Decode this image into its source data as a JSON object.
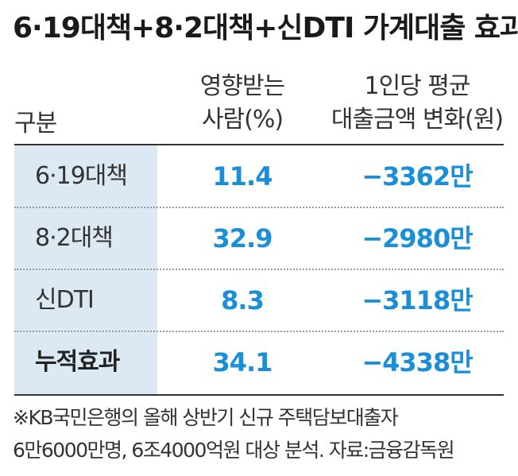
{
  "chart_data": {
    "type": "table",
    "title": "6·19대책+8·2대책+신DTI 가계대출 효과",
    "columns": {
      "category": "구분",
      "affected_line1": "영향받는",
      "affected_line2": "사람(%)",
      "loan_line1": "1인당 평균",
      "loan_line2": "대출금액 변화(원)"
    },
    "rows": [
      {
        "category": "6·19대책",
        "affected_pct": "11.4",
        "loan_change": "−3362만",
        "bold": false
      },
      {
        "category": "8·2대책",
        "affected_pct": "32.9",
        "loan_change": "−2980만",
        "bold": false
      },
      {
        "category": "신DTI",
        "affected_pct": "8.3",
        "loan_change": "−3118만",
        "bold": false
      },
      {
        "category": "누적효과",
        "affected_pct": "34.1",
        "loan_change": "−4338만",
        "bold": true
      }
    ],
    "notes": [
      "※KB국민은행의 올해 상반기 신규 주택담보대출자",
      "6만6000만명, 6조4000억원 대상 분석. 자료:금융감독원"
    ]
  },
  "colors": {
    "value_text": "#1a8fd8",
    "category_shade": "#dce8f2",
    "text": "#333333"
  }
}
